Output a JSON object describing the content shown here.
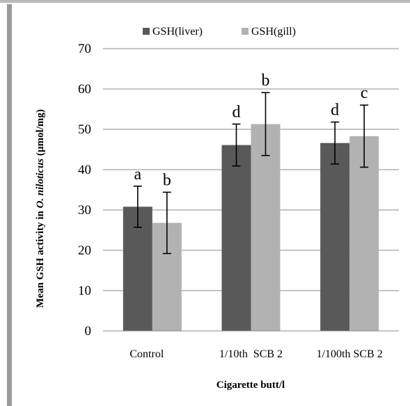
{
  "chart_data": {
    "type": "bar",
    "categories": [
      "Control",
      "1/10th  SCB 2",
      "1/100th SCB 2"
    ],
    "series": [
      {
        "name": "GSH(liver)",
        "color": "#595959",
        "values": [
          30.8,
          46.1,
          46.6
        ],
        "error": [
          5.1,
          5.2,
          5.2
        ],
        "labels": [
          "a",
          "d",
          "d"
        ]
      },
      {
        "name": "GSH(gill)",
        "color": "#b2b2b2",
        "values": [
          26.8,
          51.3,
          48.3
        ],
        "error": [
          7.6,
          7.8,
          7.7
        ],
        "labels": [
          "b",
          "b",
          "c"
        ]
      }
    ],
    "ylim": [
      0,
      70
    ],
    "yticks": [
      0,
      10,
      20,
      30,
      40,
      50,
      60,
      70
    ],
    "grid": true,
    "legend": "top-center",
    "ylabel_parts": [
      "Mean GSH activity in ",
      "O. niloticus",
      " (µmol/mg)"
    ],
    "xlabel": "Cigarette butt/l"
  }
}
